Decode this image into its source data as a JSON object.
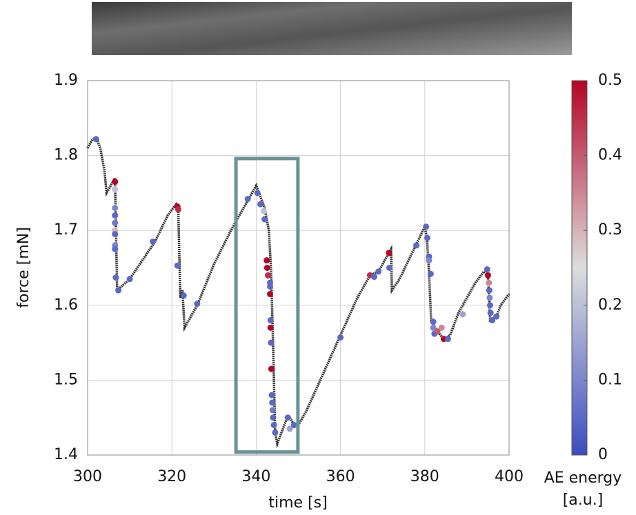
{
  "chart_data": {
    "type": "scatter",
    "xlabel": "time [s]",
    "ylabel": "force [mN]",
    "xlim": [
      300,
      400
    ],
    "xticks": [
      300,
      320,
      340,
      360,
      380,
      400
    ],
    "ylim": [
      1.4,
      1.9
    ],
    "yticks": [
      1.4,
      1.5,
      1.6,
      1.7,
      1.8,
      1.9
    ],
    "grid": true,
    "trace": {
      "color": "#333333",
      "x": [
        300,
        301,
        302,
        303,
        304,
        304.5,
        305,
        306,
        306.5,
        307,
        310,
        313,
        316,
        319,
        321,
        321.5,
        322,
        322.5,
        323,
        326,
        330,
        334,
        338,
        340,
        341,
        342,
        343,
        343.5,
        344,
        344.5,
        345,
        346,
        347,
        348,
        349,
        350,
        352,
        356,
        360,
        364,
        367,
        369,
        371,
        372,
        372.2,
        374,
        377,
        380,
        380.5,
        381,
        381.5,
        383,
        384.5,
        386,
        388,
        390,
        392,
        394,
        395,
        395.5,
        397,
        398,
        400
      ],
      "values": [
        1.81,
        1.82,
        1.825,
        1.81,
        1.78,
        1.75,
        1.755,
        1.765,
        1.77,
        1.62,
        1.635,
        1.66,
        1.685,
        1.72,
        1.735,
        1.73,
        1.61,
        1.62,
        1.57,
        1.6,
        1.655,
        1.7,
        1.74,
        1.76,
        1.745,
        1.73,
        1.7,
        1.65,
        1.55,
        1.43,
        1.415,
        1.43,
        1.445,
        1.45,
        1.44,
        1.44,
        1.46,
        1.51,
        1.56,
        1.61,
        1.64,
        1.645,
        1.665,
        1.675,
        1.62,
        1.635,
        1.67,
        1.705,
        1.69,
        1.645,
        1.58,
        1.565,
        1.555,
        1.56,
        1.59,
        1.61,
        1.63,
        1.645,
        1.64,
        1.58,
        1.585,
        1.6,
        1.615
      ]
    },
    "events": {
      "x": [
        302,
        306.5,
        306.5,
        306.5,
        306.5,
        306.5,
        306.5,
        306.5,
        306.5,
        306.5,
        306.7,
        307.3,
        310,
        315.5,
        321.3,
        321.5,
        321.3,
        322.8,
        326,
        338,
        340.3,
        341,
        341.8,
        342,
        342.5,
        342.6,
        342.8,
        343.3,
        343.3,
        343.3,
        343.4,
        343.4,
        343.5,
        343.6,
        343.7,
        343.8,
        343.9,
        344,
        344.2,
        344.5,
        347.5,
        348,
        349,
        360,
        367,
        368,
        369,
        371.5,
        371.6,
        378,
        380.3,
        380.6,
        381,
        381,
        381.4,
        382,
        382,
        382.3,
        383,
        384,
        384.5,
        385.5,
        389,
        394.8,
        395,
        395.2,
        395.3,
        395.4,
        395.5,
        395.6,
        396,
        397
      ],
      "values": [
        1.822,
        1.765,
        1.755,
        1.73,
        1.72,
        1.71,
        1.7,
        1.695,
        1.68,
        1.675,
        1.637,
        1.62,
        1.635,
        1.685,
        1.732,
        1.728,
        1.653,
        1.613,
        1.602,
        1.742,
        1.75,
        1.735,
        1.726,
        1.715,
        1.66,
        1.65,
        1.64,
        1.63,
        1.625,
        1.615,
        1.58,
        1.57,
        1.55,
        1.515,
        1.48,
        1.47,
        1.46,
        1.45,
        1.44,
        1.43,
        1.45,
        1.435,
        1.44,
        1.557,
        1.64,
        1.638,
        1.645,
        1.67,
        1.65,
        1.68,
        1.705,
        1.69,
        1.665,
        1.66,
        1.642,
        1.578,
        1.57,
        1.562,
        1.565,
        1.57,
        1.555,
        1.555,
        1.588,
        1.648,
        1.64,
        1.63,
        1.62,
        1.61,
        1.6,
        1.59,
        1.58,
        1.585
      ],
      "energy": [
        0.05,
        0.5,
        0.2,
        0.1,
        0.05,
        0.08,
        0.3,
        0.05,
        0.1,
        0.05,
        0.05,
        0.05,
        0.05,
        0.05,
        0.5,
        0.45,
        0.05,
        0.05,
        0.05,
        0.05,
        0.05,
        0.05,
        0.2,
        0.05,
        0.5,
        0.5,
        0.45,
        0.05,
        0.05,
        0.5,
        0.05,
        0.5,
        0.05,
        0.5,
        0.05,
        0.05,
        0.08,
        0.05,
        0.05,
        0.05,
        0.05,
        0.15,
        0.05,
        0.05,
        0.45,
        0.05,
        0.05,
        0.5,
        0.05,
        0.05,
        0.05,
        0.05,
        0.05,
        0.1,
        0.05,
        0.05,
        0.1,
        0.05,
        0.4,
        0.35,
        0.5,
        0.05,
        0.15,
        0.05,
        0.5,
        0.35,
        0.05,
        0.1,
        0.05,
        0.05,
        0.05,
        0.05
      ]
    },
    "colormap": [
      "#3b4cc0",
      "#dddddd",
      "#b40426"
    ],
    "colorbar": {
      "label": [
        "AE energy",
        "[a.u.]"
      ],
      "clim": [
        0,
        0.5
      ],
      "ticks": [
        0,
        0.1,
        0.2,
        0.3,
        0.4,
        0.5
      ]
    },
    "highlight": {
      "xlim": [
        335.2,
        349.9
      ],
      "ylim": [
        1.404,
        1.796
      ],
      "color": "#6a9199"
    }
  }
}
